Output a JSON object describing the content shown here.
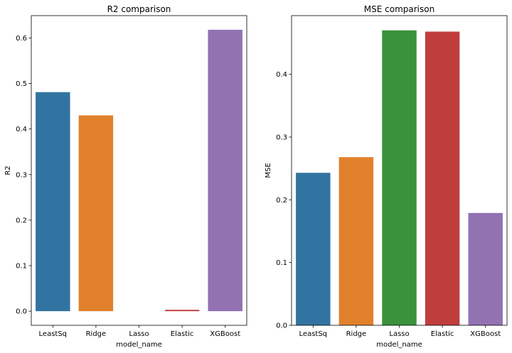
{
  "chart_data": [
    {
      "type": "bar",
      "title": "R2 comparison",
      "xlabel": "model_name",
      "ylabel": "R2",
      "categories": [
        "LeastSq",
        "Ridge",
        "Lasso",
        "Elastic",
        "XGBoost"
      ],
      "values": [
        0.481,
        0.43,
        0.0,
        0.003,
        0.618
      ],
      "colors": [
        "#3274a1",
        "#e1812c",
        "#3a923a",
        "#c03d3e",
        "#9372b2"
      ],
      "ylim": [
        -0.031,
        0.649
      ],
      "yticks": [
        0.0,
        0.1,
        0.2,
        0.3,
        0.4,
        0.5,
        0.6
      ],
      "ytick_labels": [
        "0.0",
        "0.1",
        "0.2",
        "0.3",
        "0.4",
        "0.5",
        "0.6"
      ],
      "grid": false
    },
    {
      "type": "bar",
      "title": "MSE comparison",
      "xlabel": "model_name",
      "ylabel": "MSE",
      "categories": [
        "LeastSq",
        "Ridge",
        "Lasso",
        "Elastic",
        "XGBoost"
      ],
      "values": [
        0.243,
        0.268,
        0.47,
        0.468,
        0.179
      ],
      "colors": [
        "#3274a1",
        "#e1812c",
        "#3a923a",
        "#c03d3e",
        "#9372b2"
      ],
      "ylim": [
        0.0,
        0.4935
      ],
      "yticks": [
        0.0,
        0.1,
        0.2,
        0.3,
        0.4
      ],
      "ytick_labels": [
        "0.0",
        "0.1",
        "0.2",
        "0.3",
        "0.4"
      ],
      "grid": false
    }
  ]
}
